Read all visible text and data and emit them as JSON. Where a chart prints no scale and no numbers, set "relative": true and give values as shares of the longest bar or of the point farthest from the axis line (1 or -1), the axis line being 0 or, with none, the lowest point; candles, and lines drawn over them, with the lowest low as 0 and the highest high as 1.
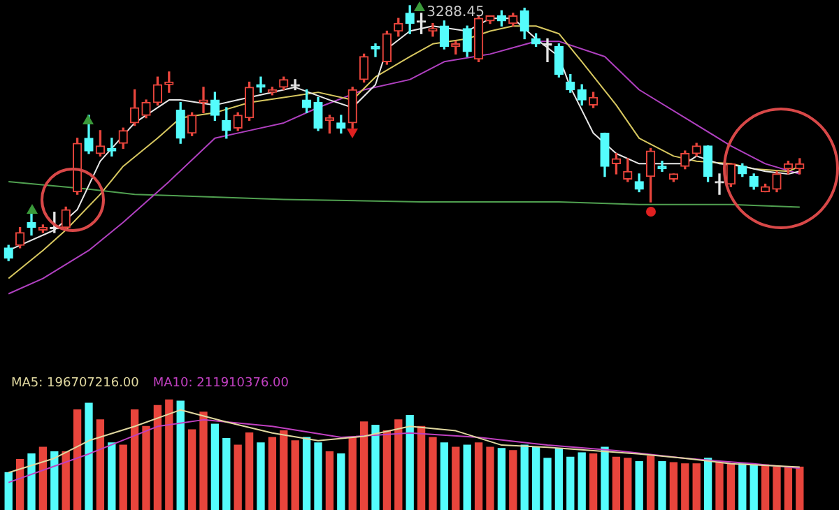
{
  "chart_data": [
    {
      "type": "candlestick",
      "relative": true,
      "legend": false,
      "tick_labels": false,
      "categories": [
        null,
        null,
        null,
        null,
        null,
        null,
        null,
        null,
        null,
        null,
        null,
        null,
        null,
        null,
        null,
        null,
        null,
        null,
        null,
        null,
        null,
        null,
        null,
        null,
        null,
        null,
        null,
        null,
        null,
        null,
        null,
        null,
        null,
        null,
        null,
        null,
        null,
        null,
        null,
        null,
        null,
        null,
        null,
        null,
        null,
        null,
        null,
        null,
        null,
        null,
        null,
        null,
        null,
        null,
        null,
        null,
        null,
        null,
        null,
        null,
        null,
        null,
        null,
        null,
        null,
        null,
        null,
        null,
        null,
        null
      ],
      "ohlc": [
        [
          0.05,
          0.06,
          0,
          0.01
        ],
        [
          0.06,
          0.13,
          0.05,
          0.11
        ],
        [
          0.15,
          0.2,
          0.1,
          0.13
        ],
        [
          0.12,
          0.14,
          0.11,
          0.13
        ],
        [
          0.13,
          0.19,
          0.11,
          0.13
        ],
        [
          0.13,
          0.21,
          0.12,
          0.2
        ],
        [
          0.27,
          0.48,
          0.26,
          0.46
        ],
        [
          0.48,
          0.57,
          0.42,
          0.43
        ],
        [
          0.42,
          0.51,
          0.41,
          0.45
        ],
        [
          0.44,
          0.48,
          0.41,
          0.43
        ],
        [
          0.46,
          0.52,
          0.44,
          0.51
        ],
        [
          0.54,
          0.67,
          0.53,
          0.6
        ],
        [
          0.57,
          0.63,
          0.56,
          0.62
        ],
        [
          0.62,
          0.72,
          0.61,
          0.69
        ],
        [
          0.69,
          0.74,
          0.66,
          0.7
        ],
        [
          0.59,
          0.62,
          0.46,
          0.48
        ],
        [
          0.5,
          0.58,
          0.49,
          0.57
        ],
        [
          0.62,
          0.68,
          0.58,
          0.63
        ],
        [
          0.63,
          0.66,
          0.55,
          0.57
        ],
        [
          0.55,
          0.6,
          0.48,
          0.51
        ],
        [
          0.52,
          0.58,
          0.51,
          0.57
        ],
        [
          0.56,
          0.7,
          0.55,
          0.68
        ],
        [
          0.69,
          0.72,
          0.66,
          0.68
        ],
        [
          0.66,
          0.68,
          0.65,
          0.67
        ],
        [
          0.68,
          0.72,
          0.67,
          0.71
        ],
        [
          0.69,
          0.71,
          0.67,
          0.69
        ],
        [
          0.63,
          0.67,
          0.58,
          0.6
        ],
        [
          0.62,
          0.64,
          0.51,
          0.52
        ],
        [
          0.55,
          0.57,
          0.5,
          0.56
        ],
        [
          0.54,
          0.57,
          0.5,
          0.52
        ],
        [
          0.54,
          0.68,
          0.52,
          0.67
        ],
        [
          0.71,
          0.81,
          0.7,
          0.8
        ],
        [
          0.84,
          0.85,
          0.8,
          0.83
        ],
        [
          0.78,
          0.9,
          0.77,
          0.89
        ],
        [
          0.9,
          0.95,
          0.88,
          0.93
        ],
        [
          0.97,
          1,
          0.89,
          0.93
        ],
        [
          0.94,
          0.97,
          0.89,
          0.94
        ],
        [
          0.9,
          0.93,
          0.88,
          0.91
        ],
        [
          0.92,
          0.94,
          0.83,
          0.84
        ],
        [
          0.84,
          0.86,
          0.81,
          0.85
        ],
        [
          0.91,
          0.92,
          0.8,
          0.82
        ],
        [
          0.79,
          0.96,
          0.78,
          0.95
        ],
        [
          0.94,
          0.96,
          0.93,
          0.96
        ],
        [
          0.96,
          0.98,
          0.92,
          0.94
        ],
        [
          0.93,
          0.97,
          0.92,
          0.96
        ],
        [
          0.98,
          0.99,
          0.87,
          0.9
        ],
        [
          0.87,
          0.89,
          0.84,
          0.85
        ],
        [
          0.85,
          0.87,
          0.78,
          0.85
        ],
        [
          0.84,
          0.85,
          0.72,
          0.73
        ],
        [
          0.7,
          0.73,
          0.66,
          0.67
        ],
        [
          0.67,
          0.69,
          0.61,
          0.63
        ],
        [
          0.61,
          0.66,
          0.6,
          0.64
        ],
        [
          0.5,
          0.5,
          0.33,
          0.37
        ],
        [
          0.38,
          0.42,
          0.34,
          0.4
        ],
        [
          0.32,
          0.4,
          0.31,
          0.35
        ],
        [
          0.31,
          0.34,
          0.27,
          0.28
        ],
        [
          0.33,
          0.44,
          0.23,
          0.43
        ],
        [
          0.37,
          0.39,
          0.35,
          0.36
        ],
        [
          0.32,
          0.34,
          0.31,
          0.34
        ],
        [
          0.37,
          0.43,
          0.36,
          0.42
        ],
        [
          0.42,
          0.46,
          0.41,
          0.45
        ],
        [
          0.45,
          0.45,
          0.31,
          0.33
        ],
        [
          0.31,
          0.34,
          0.26,
          0.31
        ],
        [
          0.3,
          0.38,
          0.29,
          0.38
        ],
        [
          0.37,
          0.38,
          0.33,
          0.34
        ],
        [
          0.33,
          0.34,
          0.28,
          0.29
        ],
        [
          0.27,
          0.3,
          0.27,
          0.29
        ],
        [
          0.28,
          0.35,
          0.27,
          0.34
        ],
        [
          0.36,
          0.39,
          0.34,
          0.38
        ],
        [
          0.36,
          0.4,
          0.34,
          0.38
        ]
      ],
      "colors": [
        "#54fcfc",
        "#e8453c",
        "#54fcfc",
        "#e8453c",
        "#e6e6e6",
        "#e8453c",
        "#e8453c",
        "#54fcfc",
        "#e8453c",
        "#54fcfc",
        "#e8453c",
        "#e8453c",
        "#e8453c",
        "#e8453c",
        "#e8453c",
        "#54fcfc",
        "#e8453c",
        "#e8453c",
        "#54fcfc",
        "#54fcfc",
        "#e8453c",
        "#e8453c",
        "#54fcfc",
        "#e8453c",
        "#e8453c",
        "#e6e6e6",
        "#54fcfc",
        "#54fcfc",
        "#e8453c",
        "#54fcfc",
        "#e8453c",
        "#e8453c",
        "#54fcfc",
        "#e8453c",
        "#e8453c",
        "#54fcfc",
        "#e6e6e6",
        "#e8453c",
        "#54fcfc",
        "#e8453c",
        "#54fcfc",
        "#e8453c",
        "#e8453c",
        "#54fcfc",
        "#e8453c",
        "#54fcfc",
        "#54fcfc",
        "#e6e6e6",
        "#54fcfc",
        "#54fcfc",
        "#54fcfc",
        "#e8453c",
        "#54fcfc",
        "#e8453c",
        "#e8453c",
        "#54fcfc",
        "#e8453c",
        "#54fcfc",
        "#e8453c",
        "#e8453c",
        "#e8453c",
        "#54fcfc",
        "#e6e6e6",
        "#e8453c",
        "#54fcfc",
        "#54fcfc",
        "#e8453c",
        "#e8453c",
        "#e8453c",
        "#e8453c"
      ],
      "series": [
        {
          "type": "line",
          "color": "#e8e8e8",
          "values": [
            0.04,
            null,
            null,
            null,
            0.12,
            null,
            0.2,
            null,
            0.39,
            null,
            0.49,
            0.54,
            null,
            null,
            0.63,
            0.63,
            null,
            null,
            0.61,
            null,
            0.63,
            null,
            null,
            null,
            0.67,
            0.68,
            null,
            null,
            0.63,
            null,
            0.6,
            null,
            0.69,
            0.83,
            null,
            0.9,
            null,
            0.92,
            null,
            null,
            0.9,
            null,
            0.95,
            null,
            0.95,
            null,
            0.87,
            null,
            0.8,
            0.68,
            null,
            0.5,
            null,
            0.42,
            null,
            0.38,
            null,
            0.38,
            null,
            0.38,
            0.41,
            null,
            0.38,
            null,
            0.37,
            null,
            0.35,
            null,
            0.34,
            0.35
          ]
        },
        {
          "type": "line",
          "color": "#d8c860",
          "values": [
            -0.07,
            null,
            null,
            0.04,
            null,
            0.12,
            null,
            null,
            0.26,
            null,
            0.37,
            null,
            null,
            0.48,
            null,
            0.56,
            null,
            null,
            0.58,
            null,
            null,
            0.62,
            null,
            null,
            0.64,
            null,
            null,
            0.66,
            null,
            null,
            0.63,
            null,
            0.72,
            null,
            null,
            0.8,
            null,
            0.85,
            null,
            null,
            0.87,
            null,
            0.9,
            null,
            0.92,
            null,
            0.92,
            null,
            0.89,
            null,
            0.78,
            null,
            null,
            0.61,
            null,
            0.48,
            null,
            null,
            0.41,
            null,
            0.39,
            null,
            null,
            0.38,
            null,
            0.36,
            null,
            null,
            0.35,
            0.37
          ]
        },
        {
          "type": "line",
          "color": "#b040c0",
          "values": [
            -0.13,
            null,
            null,
            -0.07,
            null,
            null,
            null,
            0.04,
            null,
            null,
            0.15,
            null,
            null,
            null,
            0.31,
            null,
            null,
            null,
            0.48,
            null,
            null,
            0.51,
            null,
            null,
            0.54,
            null,
            null,
            0.6,
            null,
            null,
            null,
            0.67,
            null,
            null,
            null,
            0.71,
            null,
            null,
            0.78,
            null,
            null,
            null,
            0.81,
            null,
            null,
            null,
            0.86,
            null,
            0.86,
            null,
            null,
            null,
            0.8,
            null,
            null,
            0.67,
            null,
            null,
            null,
            0.56,
            null,
            null,
            null,
            0.45,
            null,
            null,
            0.38,
            null,
            null,
            0.34
          ]
        },
        {
          "type": "line",
          "color": "#50a050",
          "values": [
            0.31,
            null,
            null,
            null,
            null,
            null,
            null,
            0.28,
            null,
            null,
            null,
            0.26,
            null,
            null,
            null,
            null,
            null,
            null,
            null,
            null,
            null,
            null,
            null,
            null,
            0.24,
            null,
            null,
            null,
            null,
            null,
            null,
            null,
            null,
            null,
            null,
            null,
            0.23,
            null,
            null,
            null,
            null,
            null,
            null,
            null,
            null,
            null,
            null,
            null,
            0.23,
            null,
            null,
            null,
            null,
            null,
            null,
            0.22,
            null,
            null,
            null,
            null,
            null,
            null,
            null,
            0.22,
            null,
            null,
            null,
            null,
            null,
            0.21
          ]
        }
      ],
      "annotations": [
        "3288.45"
      ]
    },
    {
      "type": "bar",
      "relative": true,
      "legend": "top left",
      "tick_labels": false,
      "categories": [
        null,
        null,
        null,
        null,
        null,
        null,
        null,
        null,
        null,
        null,
        null,
        null,
        null,
        null,
        null,
        null,
        null,
        null,
        null,
        null,
        null,
        null,
        null,
        null,
        null,
        null,
        null,
        null,
        null,
        null,
        null,
        null,
        null,
        null,
        null,
        null,
        null,
        null,
        null,
        null,
        null,
        null,
        null,
        null,
        null,
        null,
        null,
        null,
        null,
        null,
        null,
        null,
        null,
        null,
        null,
        null,
        null,
        null,
        null,
        null,
        null,
        null,
        null,
        null,
        null,
        null,
        null,
        null,
        null,
        null
      ],
      "series": [
        {
          "type": "bar",
          "colors": [
            "#54fcfc",
            "#e8453c",
            "#54fcfc",
            "#e8453c",
            "#54fcfc",
            "#e8453c",
            "#e8453c",
            "#54fcfc",
            "#e8453c",
            "#54fcfc",
            "#e8453c",
            "#e8453c",
            "#e8453c",
            "#e8453c",
            "#e8453c",
            "#54fcfc",
            "#e8453c",
            "#e8453c",
            "#54fcfc",
            "#54fcfc",
            "#e8453c",
            "#e8453c",
            "#54fcfc",
            "#e8453c",
            "#e8453c",
            "#e8453c",
            "#54fcfc",
            "#54fcfc",
            "#e8453c",
            "#54fcfc",
            "#e8453c",
            "#e8453c",
            "#54fcfc",
            "#e8453c",
            "#e8453c",
            "#54fcfc",
            "#e8453c",
            "#e8453c",
            "#54fcfc",
            "#e8453c",
            "#54fcfc",
            "#e8453c",
            "#e8453c",
            "#54fcfc",
            "#e8453c",
            "#54fcfc",
            "#54fcfc",
            "#54fcfc",
            "#54fcfc",
            "#54fcfc",
            "#54fcfc",
            "#e8453c",
            "#54fcfc",
            "#e8453c",
            "#e8453c",
            "#54fcfc",
            "#e8453c",
            "#54fcfc",
            "#e8453c",
            "#e8453c",
            "#e8453c",
            "#54fcfc",
            "#e8453c",
            "#e8453c",
            "#54fcfc",
            "#54fcfc",
            "#e8453c",
            "#e8453c",
            "#e8453c",
            "#e8453c"
          ],
          "values": [
            0.34,
            0.46,
            0.51,
            0.57,
            0.53,
            0.53,
            0.91,
            0.97,
            0.82,
            0.61,
            0.59,
            0.91,
            0.76,
            0.95,
            1,
            0.99,
            0.73,
            0.89,
            0.78,
            0.65,
            0.59,
            0.7,
            0.61,
            0.66,
            0.72,
            0.63,
            0.66,
            0.61,
            0.53,
            0.51,
            0.66,
            0.8,
            0.77,
            0.72,
            0.82,
            0.86,
            0.76,
            0.66,
            0.61,
            0.57,
            0.59,
            0.61,
            0.57,
            0.56,
            0.54,
            0.59,
            0.57,
            0.47,
            0.56,
            0.48,
            0.52,
            0.51,
            0.57,
            0.48,
            0.47,
            0.44,
            0.49,
            0.44,
            0.43,
            0.42,
            0.42,
            0.47,
            0.43,
            0.42,
            0.42,
            0.41,
            0.41,
            0.39,
            0.39,
            0.39
          ]
        },
        {
          "type": "line",
          "name": "MA5: 196707216.00",
          "color": "#e0d8a0",
          "values": [
            0.34,
            null,
            null,
            null,
            0.47,
            null,
            null,
            0.63,
            null,
            null,
            null,
            0.76,
            null,
            null,
            null,
            0.91,
            null,
            null,
            null,
            0.8,
            null,
            null,
            null,
            0.7,
            null,
            null,
            null,
            0.63,
            null,
            null,
            null,
            0.67,
            null,
            null,
            null,
            0.76,
            null,
            null,
            null,
            0.72,
            null,
            null,
            null,
            0.59,
            null,
            null,
            null,
            0.57,
            null,
            null,
            null,
            0.54,
            null,
            null,
            null,
            0.51,
            null,
            null,
            null,
            0.47,
            null,
            null,
            null,
            0.42,
            null,
            null,
            null,
            null,
            null,
            0.39
          ]
        },
        {
          "type": "line",
          "name": "MA10: 211910376.00",
          "color": "#c040c0",
          "values": [
            0.25,
            null,
            null,
            null,
            null,
            null,
            null,
            0.51,
            null,
            null,
            null,
            null,
            null,
            0.76,
            null,
            null,
            null,
            0.82,
            null,
            null,
            null,
            null,
            null,
            0.76,
            null,
            null,
            null,
            null,
            null,
            0.66,
            null,
            null,
            null,
            null,
            null,
            0.7,
            null,
            null,
            null,
            null,
            null,
            0.66,
            null,
            null,
            null,
            null,
            null,
            0.59,
            null,
            null,
            null,
            null,
            null,
            0.54,
            null,
            null,
            null,
            null,
            null,
            0.47,
            null,
            null,
            null,
            null,
            null,
            0.42,
            null,
            null,
            null,
            0.38
          ]
        }
      ]
    }
  ]
}
